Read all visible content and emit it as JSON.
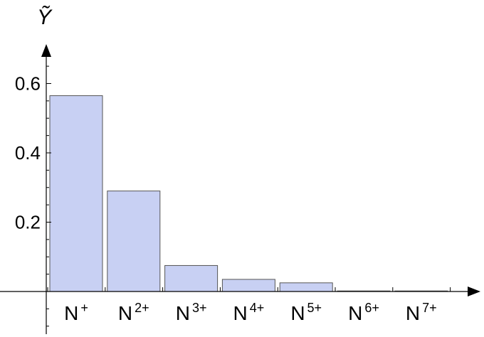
{
  "chart_data": {
    "type": "bar",
    "ylabel": "Ỹ",
    "categories": [
      {
        "base": "N",
        "sup": "+"
      },
      {
        "base": "N",
        "sup": "2+"
      },
      {
        "base": "N",
        "sup": "3+"
      },
      {
        "base": "N",
        "sup": "4+"
      },
      {
        "base": "N",
        "sup": "5+"
      },
      {
        "base": "N",
        "sup": "6+"
      },
      {
        "base": "N",
        "sup": "7+"
      }
    ],
    "values": [
      0.565,
      0.29,
      0.075,
      0.035,
      0.025,
      0.001,
      0.0
    ],
    "ylim": [
      -0.12,
      0.7
    ],
    "yticks": [
      0.2,
      0.4,
      0.6
    ],
    "ytick_labels": [
      "0.2",
      "0.4",
      "0.6"
    ],
    "grid": false,
    "bar_fill": "#c8d0f3",
    "bar_stroke": "#555555"
  }
}
